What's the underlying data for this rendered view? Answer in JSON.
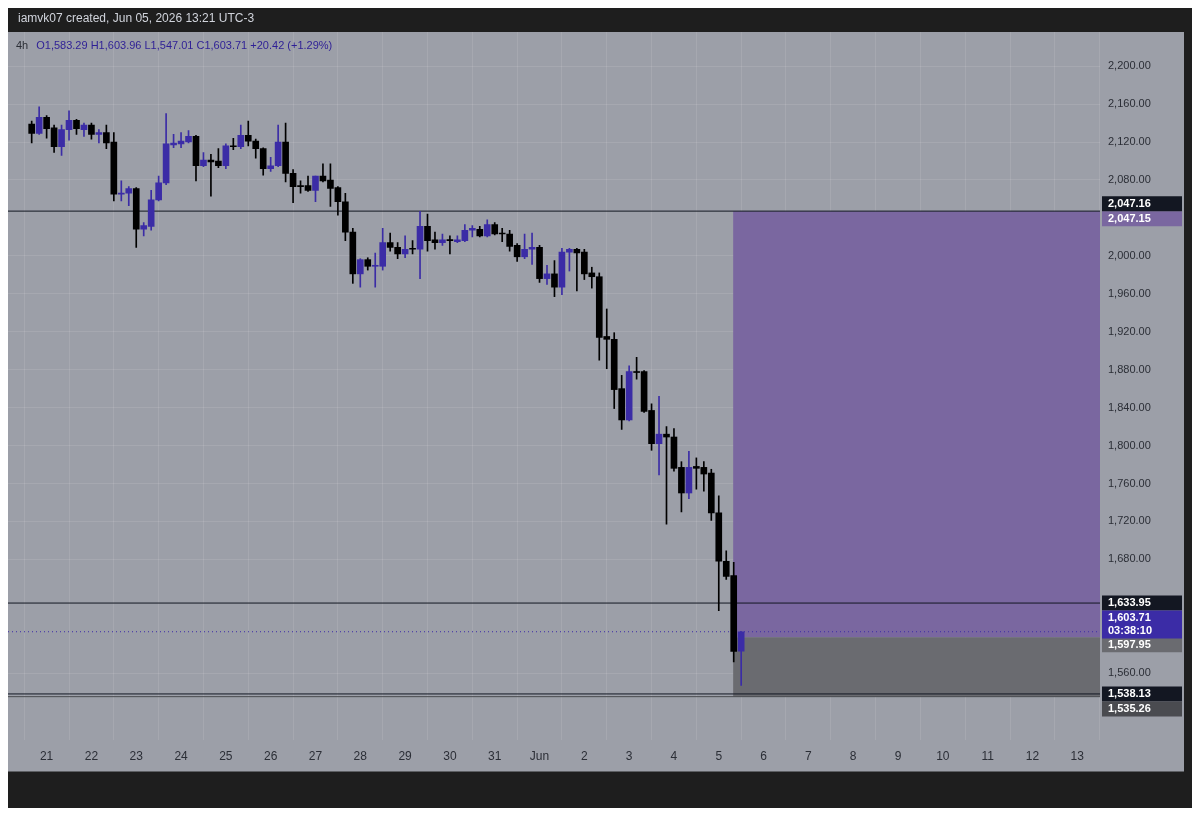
{
  "chart_data": {
    "type": "candlestick",
    "title": "4h",
    "subtitle": "O1,583.29 H1,603.96 L1,547.01 C1,603.71 +20.42 (+1.29%)",
    "annotations": [
      "iamvk07 created, Jun 05, 2026 13:21 UTC-3"
    ],
    "x": [
      "2026-05-20T16:00",
      "2026-05-20T20:00",
      "2026-05-21T00:00",
      "2026-05-21T04:00",
      "2026-05-21T08:00",
      "2026-05-21T12:00",
      "2026-05-21T16:00",
      "2026-05-21T20:00",
      "2026-05-22T00:00",
      "2026-05-22T04:00",
      "2026-05-22T08:00",
      "2026-05-22T12:00",
      "2026-05-22T16:00",
      "2026-05-22T20:00",
      "2026-05-23T00:00",
      "2026-05-23T04:00",
      "2026-05-23T08:00",
      "2026-05-23T12:00",
      "2026-05-23T16:00",
      "2026-05-23T20:00",
      "2026-05-24T00:00",
      "2026-05-24T04:00",
      "2026-05-24T08:00",
      "2026-05-24T12:00",
      "2026-05-24T16:00",
      "2026-05-24T20:00",
      "2026-05-25T00:00",
      "2026-05-25T04:00",
      "2026-05-25T08:00",
      "2026-05-25T12:00",
      "2026-05-25T16:00",
      "2026-05-25T20:00",
      "2026-05-26T00:00",
      "2026-05-26T04:00",
      "2026-05-26T08:00",
      "2026-05-26T12:00",
      "2026-05-26T16:00",
      "2026-05-26T20:00",
      "2026-05-27T00:00",
      "2026-05-27T04:00",
      "2026-05-27T08:00",
      "2026-05-27T12:00",
      "2026-05-27T16:00",
      "2026-05-27T20:00",
      "2026-05-28T00:00",
      "2026-05-28T04:00",
      "2026-05-28T08:00",
      "2026-05-28T12:00",
      "2026-05-28T16:00",
      "2026-05-28T20:00",
      "2026-05-29T00:00",
      "2026-05-29T04:00",
      "2026-05-29T08:00",
      "2026-05-29T12:00",
      "2026-05-29T16:00",
      "2026-05-29T20:00",
      "2026-05-30T00:00",
      "2026-05-30T04:00",
      "2026-05-30T08:00",
      "2026-05-30T12:00",
      "2026-05-30T16:00",
      "2026-05-30T20:00",
      "2026-05-31T00:00",
      "2026-05-31T04:00",
      "2026-05-31T08:00",
      "2026-05-31T12:00",
      "2026-05-31T16:00",
      "2026-05-31T20:00",
      "2026-06-01T00:00",
      "2026-06-01T04:00",
      "2026-06-01T08:00",
      "2026-06-01T12:00",
      "2026-06-01T16:00",
      "2026-06-01T20:00",
      "2026-06-02T00:00",
      "2026-06-02T04:00",
      "2026-06-02T08:00",
      "2026-06-02T12:00",
      "2026-06-02T16:00",
      "2026-06-02T20:00",
      "2026-06-03T00:00",
      "2026-06-03T04:00",
      "2026-06-03T08:00",
      "2026-06-03T12:00",
      "2026-06-03T16:00",
      "2026-06-03T20:00",
      "2026-06-04T00:00",
      "2026-06-04T04:00",
      "2026-06-04T08:00",
      "2026-06-04T12:00",
      "2026-06-04T16:00",
      "2026-06-04T20:00",
      "2026-06-05T00:00",
      "2026-06-05T04:00",
      "2026-06-05T08:00",
      "2026-06-05T12:00"
    ],
    "ohlc": [
      [
        2139,
        2142,
        2119,
        2129
      ],
      [
        2129,
        2157,
        2128,
        2146
      ],
      [
        2146,
        2148,
        2124,
        2134
      ],
      [
        2135,
        2138,
        2109,
        2115
      ],
      [
        2115,
        2138,
        2106,
        2133
      ],
      [
        2133,
        2153,
        2122,
        2143
      ],
      [
        2143,
        2144,
        2128,
        2134
      ],
      [
        2133,
        2140,
        2126,
        2138
      ],
      [
        2138,
        2140,
        2123,
        2128
      ],
      [
        2128,
        2133,
        2119,
        2130
      ],
      [
        2130,
        2138,
        2113,
        2119
      ],
      [
        2120,
        2130,
        2058,
        2065
      ],
      [
        2065,
        2079,
        2058,
        2066
      ],
      [
        2066,
        2073,
        2053,
        2071
      ],
      [
        2071,
        2072,
        2009,
        2028
      ],
      [
        2028,
        2035,
        2021,
        2032
      ],
      [
        2031,
        2069,
        2027,
        2059
      ],
      [
        2059,
        2084,
        2058,
        2077
      ],
      [
        2077,
        2150,
        2075,
        2118
      ],
      [
        2117,
        2128,
        2114,
        2119
      ],
      [
        2118,
        2130,
        2114,
        2121
      ],
      [
        2120,
        2132,
        2119,
        2126
      ],
      [
        2126,
        2127,
        2079,
        2095
      ],
      [
        2095,
        2109,
        2094,
        2101
      ],
      [
        2101,
        2107,
        2063,
        2099
      ],
      [
        2100,
        2113,
        2093,
        2095
      ],
      [
        2095,
        2118,
        2092,
        2116
      ],
      [
        2116,
        2124,
        2112,
        2115
      ],
      [
        2115,
        2138,
        2113,
        2127
      ],
      [
        2127,
        2142,
        2116,
        2121
      ],
      [
        2121,
        2123,
        2103,
        2113
      ],
      [
        2113,
        2114,
        2085,
        2092
      ],
      [
        2092,
        2104,
        2089,
        2095
      ],
      [
        2095,
        2138,
        2094,
        2120
      ],
      [
        2120,
        2140,
        2078,
        2087
      ],
      [
        2087,
        2091,
        2056,
        2073
      ],
      [
        2074,
        2079,
        2066,
        2073
      ],
      [
        2074,
        2084,
        2068,
        2069
      ],
      [
        2069,
        2084,
        2057,
        2084
      ],
      [
        2084,
        2097,
        2078,
        2079
      ],
      [
        2080,
        2097,
        2052,
        2071
      ],
      [
        2072,
        2073,
        2043,
        2057
      ],
      [
        2057,
        2066,
        2016,
        2025
      ],
      [
        2025,
        2029,
        1971,
        1981
      ],
      [
        1981,
        1997,
        1967,
        1996
      ],
      [
        1996,
        1998,
        1985,
        1989
      ],
      [
        1989,
        2003,
        1967,
        1990
      ],
      [
        1989,
        2029,
        1985,
        2014
      ],
      [
        2014,
        2024,
        2005,
        2009
      ],
      [
        2009,
        2014,
        1997,
        2002
      ],
      [
        2002,
        2021,
        1998,
        2007
      ],
      [
        2008,
        2016,
        2002,
        2007
      ],
      [
        2007,
        2047,
        1976,
        2031
      ],
      [
        2031,
        2044,
        2005,
        2016
      ],
      [
        2017,
        2025,
        2007,
        2014
      ],
      [
        2014,
        2023,
        2011,
        2017
      ],
      [
        2017,
        2021,
        2002,
        2016
      ],
      [
        2015,
        2021,
        2014,
        2017
      ],
      [
        2016,
        2033,
        2015,
        2027
      ],
      [
        2027,
        2032,
        2020,
        2029
      ],
      [
        2028,
        2031,
        2020,
        2021
      ],
      [
        2021,
        2038,
        2020,
        2033
      ],
      [
        2033,
        2035,
        2022,
        2023
      ],
      [
        2024,
        2029,
        2015,
        2023
      ],
      [
        2023,
        2027,
        2005,
        2010
      ],
      [
        2011,
        2013,
        1994,
        1999
      ],
      [
        1999,
        2023,
        1997,
        2007
      ],
      [
        2007,
        2024,
        1991,
        2009
      ],
      [
        2009,
        2011,
        1972,
        1976
      ],
      [
        1976,
        1990,
        1970,
        1981
      ],
      [
        1981,
        1995,
        1957,
        1967
      ],
      [
        1967,
        2008,
        1959,
        2004
      ],
      [
        2004,
        2008,
        1984,
        2007
      ],
      [
        2007,
        2008,
        1963,
        2003
      ],
      [
        2004,
        2007,
        1975,
        1981
      ],
      [
        1982,
        1988,
        1966,
        1978
      ],
      [
        1978,
        1982,
        1890,
        1914
      ],
      [
        1915,
        1944,
        1881,
        1912
      ],
      [
        1912,
        1919,
        1839,
        1859
      ],
      [
        1860,
        1874,
        1817,
        1827
      ],
      [
        1827,
        1884,
        1826,
        1878
      ],
      [
        1878,
        1893,
        1870,
        1877
      ],
      [
        1878,
        1879,
        1835,
        1836
      ],
      [
        1837,
        1844,
        1795,
        1802
      ],
      [
        1802,
        1852,
        1769,
        1812
      ],
      [
        1812,
        1820,
        1717,
        1809
      ],
      [
        1809,
        1818,
        1773,
        1776
      ],
      [
        1777,
        1783,
        1730,
        1750
      ],
      [
        1750,
        1794,
        1744,
        1777
      ],
      [
        1778,
        1787,
        1754,
        1776
      ],
      [
        1777,
        1783,
        1752,
        1770
      ],
      [
        1771,
        1775,
        1721,
        1729
      ],
      [
        1729,
        1747,
        1626,
        1678
      ],
      [
        1678,
        1689,
        1659,
        1662
      ],
      [
        1663,
        1677,
        1572,
        1583
      ],
      [
        1583.29,
        1603.96,
        1547.01,
        1603.71
      ]
    ],
    "colors": [
      "#000000",
      "#3b2ca6",
      "#000000",
      "#000000",
      "#3b2ca6",
      "#3b2ca6",
      "#000000",
      "#3b2ca6",
      "#000000",
      "#3b2ca6",
      "#000000",
      "#000000",
      "#3b2ca6",
      "#3b2ca6",
      "#000000",
      "#3b2ca6",
      "#3b2ca6",
      "#3b2ca6",
      "#3b2ca6",
      "#3b2ca6",
      "#3b2ca6",
      "#3b2ca6",
      "#000000",
      "#3b2ca6",
      "#000000",
      "#000000",
      "#3b2ca6",
      "#000000",
      "#3b2ca6",
      "#000000",
      "#000000",
      "#000000",
      "#3b2ca6",
      "#3b2ca6",
      "#000000",
      "#000000",
      "#000000",
      "#000000",
      "#3b2ca6",
      "#000000",
      "#000000",
      "#000000",
      "#000000",
      "#000000",
      "#3b2ca6",
      "#000000",
      "#3b2ca6",
      "#3b2ca6",
      "#000000",
      "#000000",
      "#3b2ca6",
      "#000000",
      "#3b2ca6",
      "#000000",
      "#000000",
      "#3b2ca6",
      "#000000",
      "#3b2ca6",
      "#3b2ca6",
      "#3b2ca6",
      "#000000",
      "#3b2ca6",
      "#000000",
      "#000000",
      "#000000",
      "#000000",
      "#3b2ca6",
      "#3b2ca6",
      "#000000",
      "#3b2ca6",
      "#000000",
      "#3b2ca6",
      "#3b2ca6",
      "#000000",
      "#000000",
      "#000000",
      "#000000",
      "#000000",
      "#000000",
      "#000000",
      "#3b2ca6",
      "#000000",
      "#000000",
      "#000000",
      "#3b2ca6",
      "#000000",
      "#000000",
      "#000000",
      "#3b2ca6",
      "#000000",
      "#000000",
      "#000000",
      "#000000",
      "#000000",
      "#000000",
      "#3b2ca6"
    ],
    "xlim": [
      "2026-05-20T15:30",
      "2026-06-13"
    ],
    "xticks": [
      {
        "value": "2026-05-21",
        "label": "21"
      },
      {
        "value": "2026-05-22",
        "label": "22"
      },
      {
        "value": "2026-05-23",
        "label": "23"
      },
      {
        "value": "2026-05-24",
        "label": "24"
      },
      {
        "value": "2026-05-25",
        "label": "25"
      },
      {
        "value": "2026-05-26",
        "label": "26"
      },
      {
        "value": "2026-05-27",
        "label": "27"
      },
      {
        "value": "2026-05-28",
        "label": "28"
      },
      {
        "value": "2026-05-29",
        "label": "29"
      },
      {
        "value": "2026-05-30",
        "label": "30"
      },
      {
        "value": "2026-05-31",
        "label": "31"
      },
      {
        "value": "2026-06-01",
        "label": "Jun"
      },
      {
        "value": "2026-06-02",
        "label": "2"
      },
      {
        "value": "2026-06-03",
        "label": "3"
      },
      {
        "value": "2026-06-04",
        "label": "4"
      },
      {
        "value": "2026-06-05",
        "label": "5"
      },
      {
        "value": "2026-06-06",
        "label": "6"
      },
      {
        "value": "2026-06-07",
        "label": "7"
      },
      {
        "value": "2026-06-08",
        "label": "8"
      },
      {
        "value": "2026-06-09",
        "label": "9"
      },
      {
        "value": "2026-06-10",
        "label": "10"
      },
      {
        "value": "2026-06-11",
        "label": "11"
      },
      {
        "value": "2026-06-12",
        "label": "12"
      },
      {
        "value": "2026-06-13",
        "label": "13"
      }
    ],
    "ylim": [
      1490,
      2236
    ],
    "yticks": [
      {
        "value": 1560,
        "label": "1,560.00"
      },
      {
        "value": 1680,
        "label": "1,680.00"
      },
      {
        "value": 1720,
        "label": "1,720.00"
      },
      {
        "value": 1760,
        "label": "1,760.00"
      },
      {
        "value": 1800,
        "label": "1,800.00"
      },
      {
        "value": 1840,
        "label": "1,840.00"
      },
      {
        "value": 1880,
        "label": "1,880.00"
      },
      {
        "value": 1920,
        "label": "1,920.00"
      },
      {
        "value": 1960,
        "label": "1,960.00"
      },
      {
        "value": 2000,
        "label": "2,000.00"
      },
      {
        "value": 2080,
        "label": "2,080.00"
      },
      {
        "value": 2120,
        "label": "2,120.00"
      },
      {
        "value": 2160,
        "label": "2,160.00"
      },
      {
        "value": 2200,
        "label": "2,200.00"
      }
    ],
    "ref_lines": [
      {
        "axis": "y",
        "value": 2047.16,
        "label": "2,047.16",
        "color": "#131722",
        "line_style": "solid"
      },
      {
        "axis": "y",
        "value": 1633.95,
        "label": "1,633.95",
        "color": "#131722",
        "line_style": "solid"
      },
      {
        "axis": "y",
        "value": 1538.13,
        "label": "1,538.13",
        "color": "#131722",
        "line_style": "solid"
      },
      {
        "axis": "y",
        "value": 1535.26,
        "label": "1,535.26",
        "color": "#4a4b50",
        "line_style": "solid"
      },
      {
        "axis": "y",
        "value": 1603.71,
        "label": "1,603.71\n03:38:10",
        "color": "#3b2ca6",
        "line_style": "dotted"
      }
    ],
    "bands": [
      {
        "axis": "y",
        "from": 1597.95,
        "to": 2047.15,
        "label": "2,047.15",
        "color": "#7a67a0"
      },
      {
        "axis": "y",
        "from": 1535.26,
        "to": 1597.95,
        "label": "1,597.95",
        "color": "#6a6b70"
      }
    ],
    "grid": true
  }
}
